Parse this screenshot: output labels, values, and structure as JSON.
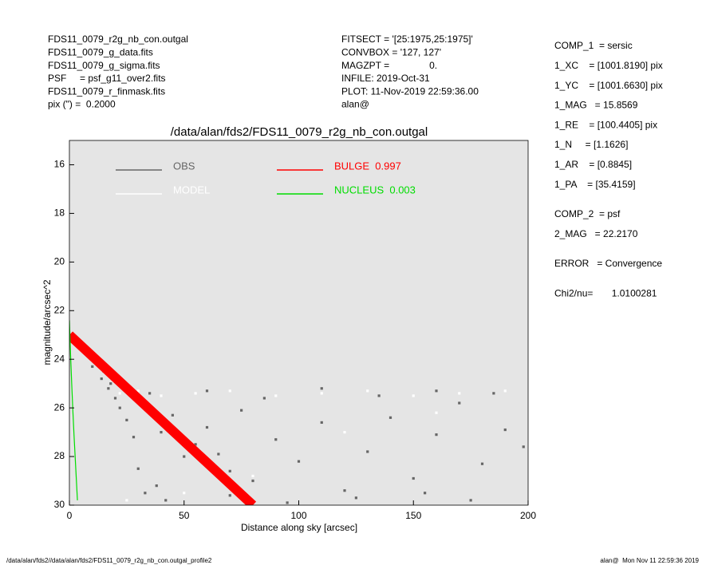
{
  "header_left": [
    "FDS11_0079_r2g_nb_con.outgal",
    "FDS11_0079_g_data.fits",
    "FDS11_0079_g_sigma.fits",
    "PSF     = psf_g11_over2.fits",
    "FDS11_0079_r_finmask.fits",
    "pix (\") =  0.2000"
  ],
  "header_middle": [
    "FITSECT = '[25:1975,25:1975]'",
    "CONVBOX = '127, 127'",
    "MAGZPT =               0.",
    "INFILE: 2019-Oct-31",
    "PLOT: 11-Nov-2019 22:59:36.00",
    "alan@"
  ],
  "fit_summary": [
    [
      "COMP_1  = sersic",
      "1_XC    = [1001.8190] pix",
      "1_YC    = [1001.6630] pix",
      "1_MAG   = 15.8569",
      "1_RE    = [100.4405] pix",
      "1_N     = [1.1626]",
      "1_AR    = [0.8845]",
      "1_PA    = [35.4159]"
    ],
    [
      "COMP_2  = psf",
      "2_MAG   = 22.2170"
    ],
    [
      "ERROR   = Convergence"
    ],
    [
      "Chi2/nu=       1.0100281"
    ]
  ],
  "footer_left": "/data/alan/fds2//data/alan/fds2/FDS11_0079_r2g_nb_con.outgal_profile2",
  "footer_right": "alan@  Mon Nov 11 22:59:36 2019",
  "chart_data": {
    "type": "scatter",
    "title": "/data/alan/fds2/FDS11_0079_r2g_nb_con.outgal",
    "x_label": "Distance along sky [arcsec]",
    "y_label": "magnitude/arcsec^2",
    "xlim": [
      0,
      200
    ],
    "xticks": [
      0,
      50,
      100,
      150,
      200
    ],
    "ylim": [
      15,
      30
    ],
    "yticks": [
      16,
      18,
      20,
      22,
      24,
      26,
      28,
      30
    ],
    "invert_y": true,
    "background": "#e5e5e5",
    "series": [
      {
        "name": "OBS",
        "color": "#666666",
        "mode": "markers",
        "x": [
          5,
          7,
          9,
          10,
          12,
          14,
          15,
          17,
          18,
          20,
          22,
          25,
          28,
          30,
          33,
          35,
          38,
          40,
          45,
          50,
          55,
          60,
          65,
          70,
          75,
          80,
          90,
          100,
          110,
          120,
          130,
          140,
          150,
          160,
          170,
          180,
          190,
          198,
          35,
          60,
          85,
          110,
          135,
          160,
          185,
          42,
          70,
          95,
          125,
          155,
          175
        ],
        "values": [
          23.3,
          23.6,
          23.8,
          24.3,
          24.2,
          24.8,
          24.5,
          25.2,
          25.0,
          25.6,
          26.0,
          26.5,
          27.2,
          28.5,
          29.5,
          26.0,
          29.2,
          27.0,
          26.3,
          28.0,
          27.5,
          26.8,
          27.9,
          28.6,
          26.1,
          29.0,
          27.3,
          28.2,
          26.6,
          29.4,
          27.8,
          26.4,
          28.9,
          27.1,
          25.8,
          28.3,
          26.9,
          27.6,
          25.4,
          25.3,
          25.6,
          25.2,
          25.5,
          25.3,
          25.4,
          29.8,
          29.6,
          29.9,
          29.7,
          29.5,
          29.8
        ]
      },
      {
        "name": "MODEL",
        "color": "#ffffff",
        "mode": "markers",
        "x": [
          22,
          30,
          40,
          55,
          70,
          90,
          110,
          130,
          150,
          170,
          190,
          25,
          50,
          80,
          120,
          160
        ],
        "values": [
          25.4,
          25.3,
          25.5,
          25.4,
          25.3,
          25.5,
          25.4,
          25.3,
          25.5,
          25.4,
          25.3,
          29.8,
          29.5,
          28.8,
          27.0,
          26.2
        ]
      },
      {
        "name": "BULGE  0.997",
        "color": "#ff0000",
        "mode": "band",
        "x": [
          0,
          20,
          40,
          60,
          80
        ],
        "values": [
          23,
          24.75,
          26.5,
          28.25,
          30
        ]
      },
      {
        "name": "NUCLEUS  0.003",
        "color": "#00dd00",
        "mode": "line",
        "x": [
          0,
          0.5,
          1,
          1.5,
          2,
          2.5,
          3,
          3.5
        ],
        "values": [
          22.4,
          23.8,
          25.0,
          26.1,
          27.1,
          28.0,
          28.9,
          29.8
        ]
      }
    ]
  }
}
